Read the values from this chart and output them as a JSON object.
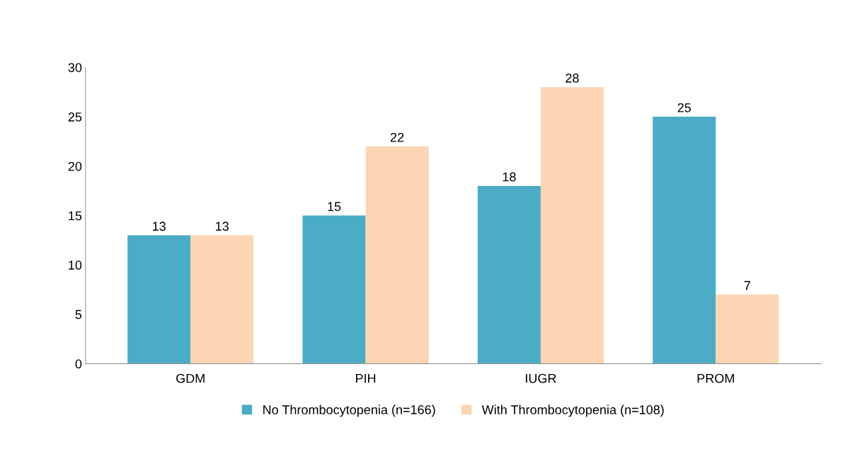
{
  "chart_data": {
    "type": "bar",
    "categories": [
      "GDM",
      "PIH",
      "IUGR",
      "PROM"
    ],
    "series": [
      {
        "name": "No Thrombocytopenia (n=166)",
        "color": "#4bacc6",
        "values": [
          13,
          15,
          18,
          25
        ]
      },
      {
        "name": "With Thrombocytopenia (n=108)",
        "color": "#fcd5b4",
        "values": [
          13,
          22,
          28,
          7
        ]
      }
    ],
    "ylim": [
      0,
      30
    ],
    "yticks": [
      0,
      5,
      10,
      15,
      20,
      25,
      30
    ],
    "grid": false,
    "legend": "bottom",
    "data_labels": true
  }
}
